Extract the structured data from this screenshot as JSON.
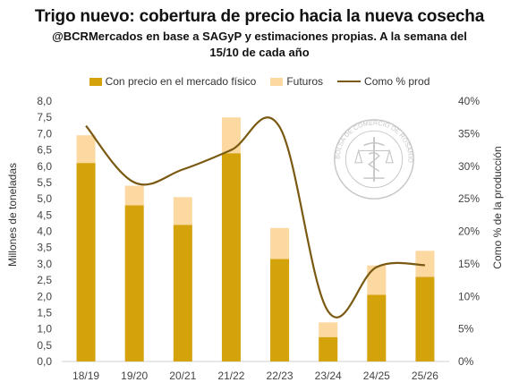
{
  "title": "Trigo nuevo: cobertura de precio hacia la nueva cosecha",
  "subtitle_line1": "@BCRMercados en base a SAGyP y estimaciones propias. A la semana del",
  "subtitle_line2": "15/10 de cada año",
  "legend": {
    "physical": "Con precio en el mercado físico",
    "futures": "Futuros",
    "pct": "Como % prod"
  },
  "colors": {
    "physical": "#d4a20a",
    "futures": "#fbd9a1",
    "pct_line": "#7a5a12",
    "axis_text": "#444"
  },
  "watermark_text": "BOLSA DE COMERCIO DE ROSARIO",
  "chart_data": {
    "type": "bar",
    "stacked": true,
    "categories": [
      "18/19",
      "19/20",
      "20/21",
      "21/22",
      "22/23",
      "23/24",
      "24/25",
      "25/26"
    ],
    "series": [
      {
        "name": "Con precio en el mercado físico",
        "values": [
          6.1,
          4.8,
          4.2,
          6.4,
          3.15,
          0.75,
          2.05,
          2.6
        ]
      },
      {
        "name": "Futuros",
        "values": [
          0.85,
          0.6,
          0.85,
          1.1,
          0.95,
          0.45,
          0.9,
          0.8
        ]
      },
      {
        "name": "Como % prod",
        "axis": "right",
        "type": "line",
        "values": [
          36.2,
          27.5,
          29.5,
          32.5,
          36.0,
          7.7,
          14.5,
          14.8
        ]
      }
    ],
    "ylabel": "Millones de toneladas",
    "ylabel_right": "Como % de la producción",
    "ylim": [
      0,
      8
    ],
    "yticks": [
      "0,0",
      "0,5",
      "1,0",
      "1,5",
      "2,0",
      "2,5",
      "3,0",
      "3,5",
      "4,0",
      "4,5",
      "5,0",
      "5,5",
      "6,0",
      "6,5",
      "7,0",
      "7,5",
      "8,0"
    ],
    "ylim_right": [
      0,
      40
    ],
    "yticks_right": [
      "0%",
      "5%",
      "10%",
      "15%",
      "20%",
      "25%",
      "30%",
      "35%",
      "40%"
    ],
    "legend_position": "top"
  }
}
